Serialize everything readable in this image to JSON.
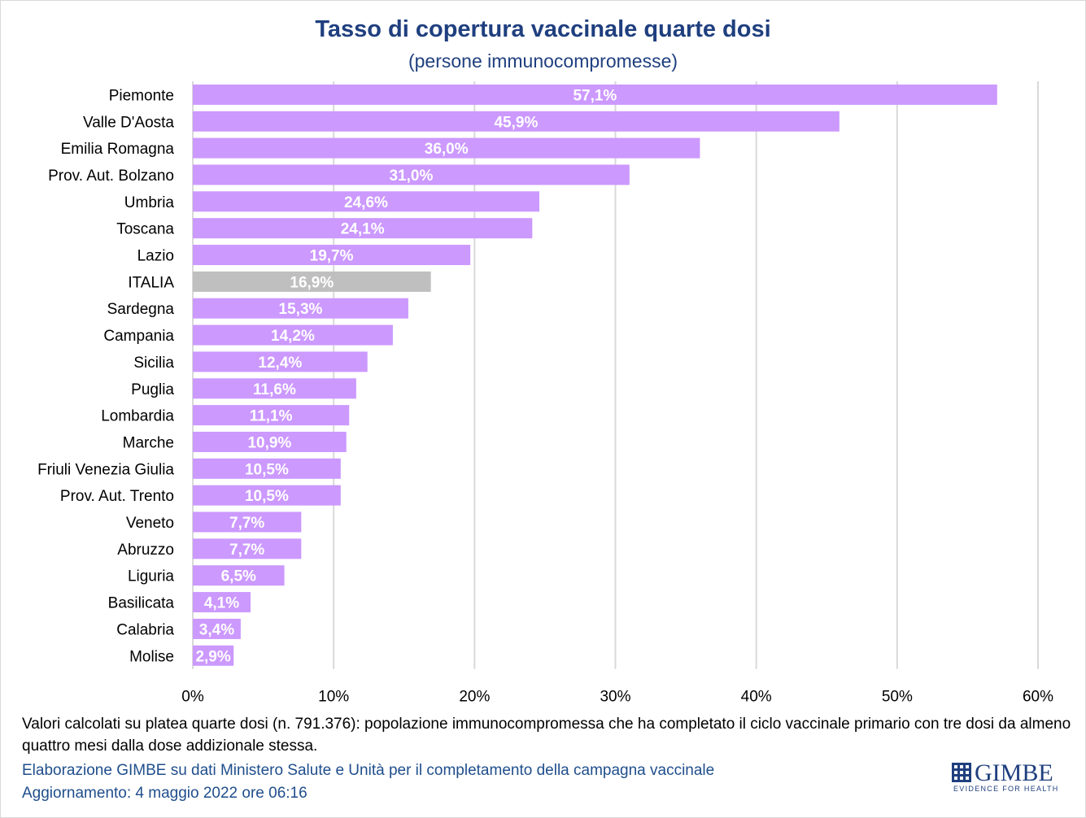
{
  "title": "Tasso di copertura vaccinale quarte dosi",
  "subtitle": "(persone immunocompromesse)",
  "colors": {
    "bar": "#cc99ff",
    "italia_bar": "#bfbfbf",
    "grid": "#d9d9d9",
    "title": "#1f3f7f",
    "credit": "#1f4e8c"
  },
  "chart_data": {
    "type": "bar",
    "orientation": "horizontal",
    "categories": [
      "Piemonte",
      "Valle D'Aosta",
      "Emilia Romagna",
      "Prov. Aut. Bolzano",
      "Umbria",
      "Toscana",
      "Lazio",
      "ITALIA",
      "Sardegna",
      "Campania",
      "Sicilia",
      "Puglia",
      "Lombardia",
      "Marche",
      "Friuli Venezia Giulia",
      "Prov. Aut. Trento",
      "Veneto",
      "Abruzzo",
      "Liguria",
      "Basilicata",
      "Calabria",
      "Molise"
    ],
    "values": [
      57.1,
      45.9,
      36.0,
      31.0,
      24.6,
      24.1,
      19.7,
      16.9,
      15.3,
      14.2,
      12.4,
      11.6,
      11.1,
      10.9,
      10.5,
      10.5,
      7.7,
      7.7,
      6.5,
      4.1,
      3.4,
      2.9
    ],
    "data_labels": [
      "57,1%",
      "45,9%",
      "36,0%",
      "31,0%",
      "24,6%",
      "24,1%",
      "19,7%",
      "16,9%",
      "15,3%",
      "14,2%",
      "12,4%",
      "11,6%",
      "11,1%",
      "10,9%",
      "10,5%",
      "10,5%",
      "7,7%",
      "7,7%",
      "6,5%",
      "4,1%",
      "3,4%",
      "2,9%"
    ],
    "highlight": "ITALIA",
    "xlim": [
      0,
      60
    ],
    "x_ticks": [
      0,
      10,
      20,
      30,
      40,
      50,
      60
    ],
    "x_tick_labels": [
      "0%",
      "10%",
      "20%",
      "30%",
      "40%",
      "50%",
      "60%"
    ],
    "grid": true
  },
  "footer": {
    "note": "Valori calcolati su platea quarte dosi (n. 791.376): popolazione immunocompromessa che ha completato il ciclo vaccinale primario con tre dosi da almeno quattro mesi dalla dose addizionale stessa.",
    "credit_line1": "Elaborazione GIMBE su dati Ministero Salute e Unità per il completamento della campagna vaccinale",
    "credit_line2": "Aggiornamento: 4 maggio 2022 ore 06:16"
  },
  "logo": {
    "name": "GIMBE",
    "tagline": "EVIDENCE FOR HEALTH",
    "icon": "gimbe-grid-icon"
  }
}
